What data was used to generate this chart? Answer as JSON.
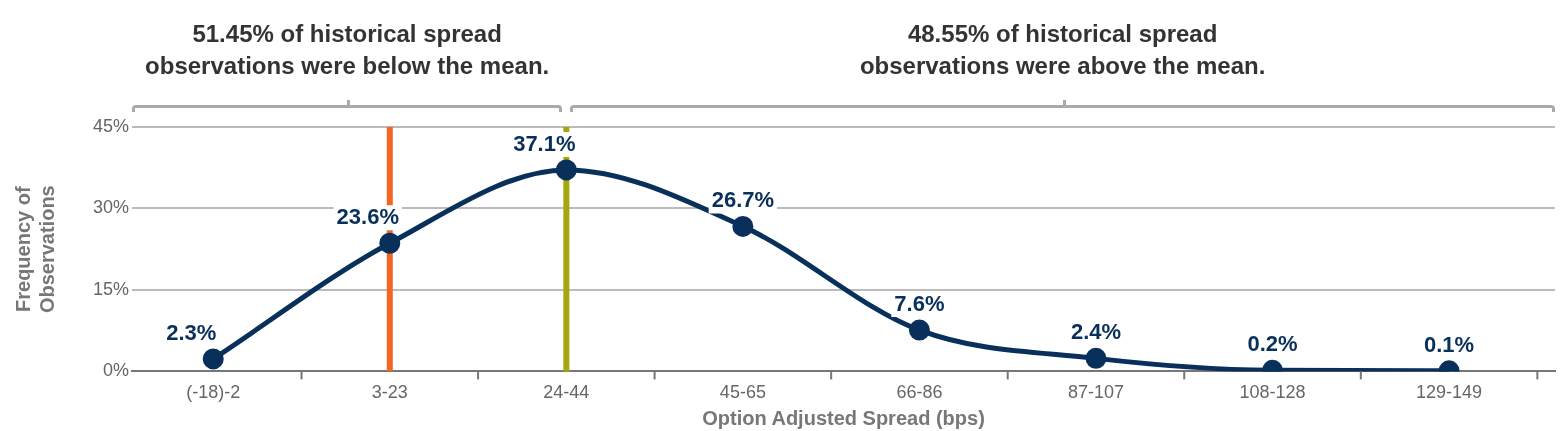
{
  "chart_data": {
    "type": "line",
    "annotations": [
      "51.45% of historical spread observations were below the mean.",
      "48.55% of historical spread observations were above the mean."
    ],
    "xlabel": "Option Adjusted Spread (bps)",
    "ylabel": "Frequency of Observations",
    "categories": [
      "(-18)-2",
      "3-23",
      "24-44",
      "45-65",
      "66-86",
      "87-107",
      "108-128",
      "129-149"
    ],
    "series": [
      {
        "color": "#08305a",
        "values": [
          2.3,
          23.6,
          37.1,
          26.7,
          7.6,
          2.4,
          0.2,
          0.1
        ],
        "value_labels": [
          "2.3%",
          "23.6%",
          "37.1%",
          "26.7%",
          "7.6%",
          "2.4%",
          "0.2%",
          "0.1%"
        ]
      }
    ],
    "ylim": [
      0,
      45
    ],
    "yticks": [
      {
        "value": 0,
        "label": "0%"
      },
      {
        "value": 15,
        "label": "15%"
      },
      {
        "value": 30,
        "label": "30%"
      },
      {
        "value": 45,
        "label": "45%"
      }
    ],
    "ref_lines": [
      {
        "axis": "x",
        "value": "3-23",
        "color": "#f26522"
      },
      {
        "axis": "x",
        "value": "24-44",
        "color": "#a4a80a"
      }
    ],
    "grid": "y",
    "legend": false,
    "marker": "circle"
  }
}
